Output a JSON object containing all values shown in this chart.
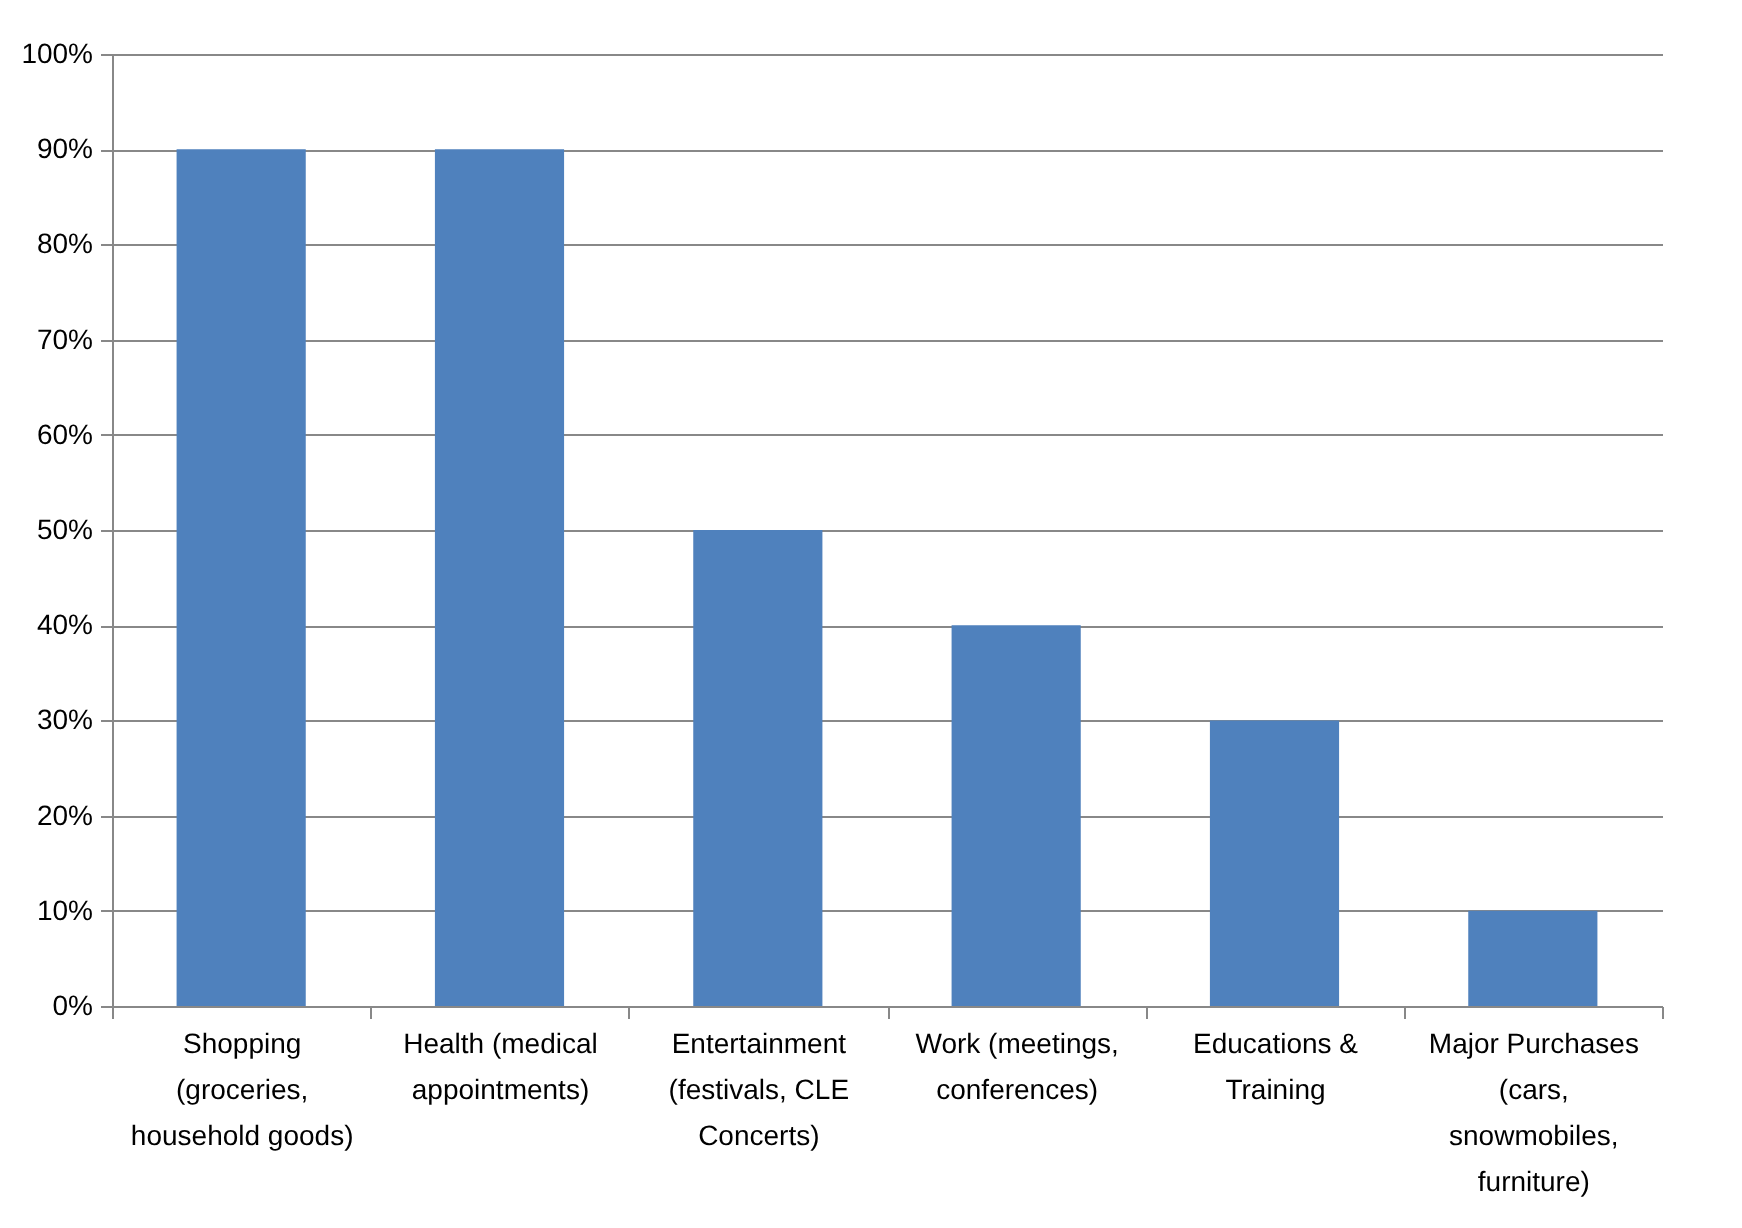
{
  "chart_data": {
    "type": "bar",
    "categories": [
      "Shopping (groceries, household goods)",
      "Health (medical appointments)",
      "Entertainment (festivals, CLE Concerts)",
      "Work (meetings, conferences)",
      "Educations & Training",
      "Major Purchases (cars, snowmobiles, furniture)"
    ],
    "values": [
      90,
      90,
      50,
      40,
      30,
      10
    ],
    "color": "#4f81bd",
    "ylim": [
      0,
      100
    ],
    "yticks": [
      {
        "value": 0,
        "label": "0%"
      },
      {
        "value": 10,
        "label": "10%"
      },
      {
        "value": 20,
        "label": "20%"
      },
      {
        "value": 30,
        "label": "30%"
      },
      {
        "value": 40,
        "label": "40%"
      },
      {
        "value": 50,
        "label": "50%"
      },
      {
        "value": 60,
        "label": "60%"
      },
      {
        "value": 70,
        "label": "70%"
      },
      {
        "value": 80,
        "label": "80%"
      },
      {
        "value": 90,
        "label": "90%"
      },
      {
        "value": 100,
        "label": "100%"
      }
    ],
    "grid": "y"
  }
}
